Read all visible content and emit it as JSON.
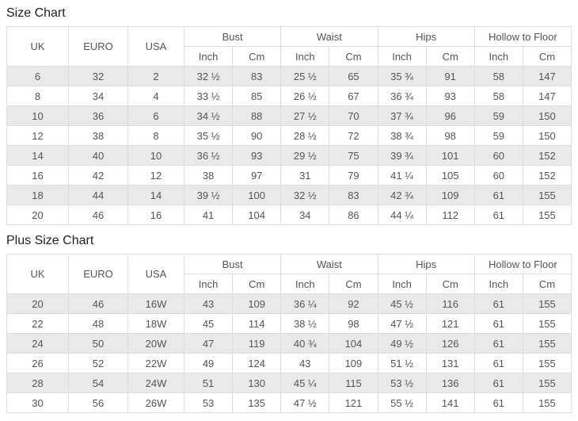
{
  "page": {
    "size_chart_title": "Size Chart",
    "plus_size_chart_title": "Plus Size Chart"
  },
  "headers": {
    "simple": [
      "UK",
      "EURO",
      "USA"
    ],
    "groups": [
      "Bust",
      "Waist",
      "Hips",
      "Hollow to Floor"
    ],
    "sub": [
      "Inch",
      "Cm"
    ]
  },
  "size_chart": {
    "rows": [
      [
        "6",
        "32",
        "2",
        "32 ½",
        "83",
        "25 ½",
        "65",
        "35 ¾",
        "91",
        "58",
        "147"
      ],
      [
        "8",
        "34",
        "4",
        "33 ½",
        "85",
        "26 ½",
        "67",
        "36 ¾",
        "93",
        "58",
        "147"
      ],
      [
        "10",
        "36",
        "6",
        "34 ½",
        "88",
        "27 ½",
        "70",
        "37 ¾",
        "96",
        "59",
        "150"
      ],
      [
        "12",
        "38",
        "8",
        "35 ½",
        "90",
        "28 ½",
        "72",
        "38 ¾",
        "98",
        "59",
        "150"
      ],
      [
        "14",
        "40",
        "10",
        "36 ½",
        "93",
        "29 ½",
        "75",
        "39 ¾",
        "101",
        "60",
        "152"
      ],
      [
        "16",
        "42",
        "12",
        "38",
        "97",
        "31",
        "79",
        "41 ¼",
        "105",
        "60",
        "152"
      ],
      [
        "18",
        "44",
        "14",
        "39 ½",
        "100",
        "32 ½",
        "83",
        "42 ¾",
        "109",
        "61",
        "155"
      ],
      [
        "20",
        "46",
        "16",
        "41",
        "104",
        "34",
        "86",
        "44 ¼",
        "112",
        "61",
        "155"
      ]
    ]
  },
  "plus_size_chart": {
    "rows": [
      [
        "20",
        "46",
        "16W",
        "43",
        "109",
        "36 ¼",
        "92",
        "45 ½",
        "116",
        "61",
        "155"
      ],
      [
        "22",
        "48",
        "18W",
        "45",
        "114",
        "38 ½",
        "98",
        "47 ½",
        "121",
        "61",
        "155"
      ],
      [
        "24",
        "50",
        "20W",
        "47",
        "119",
        "40 ¾",
        "104",
        "49 ½",
        "126",
        "61",
        "155"
      ],
      [
        "26",
        "52",
        "22W",
        "49",
        "124",
        "43",
        "109",
        "51 ½",
        "131",
        "61",
        "155"
      ],
      [
        "28",
        "54",
        "24W",
        "51",
        "130",
        "45 ¼",
        "115",
        "53 ½",
        "136",
        "61",
        "155"
      ],
      [
        "30",
        "56",
        "26W",
        "53",
        "135",
        "47 ½",
        "121",
        "55 ½",
        "141",
        "61",
        "155"
      ]
    ]
  },
  "colors": {
    "row_alt_background": "#e9e9e9",
    "border": "#dddddd",
    "text": "#555555",
    "title_text": "#222222"
  }
}
